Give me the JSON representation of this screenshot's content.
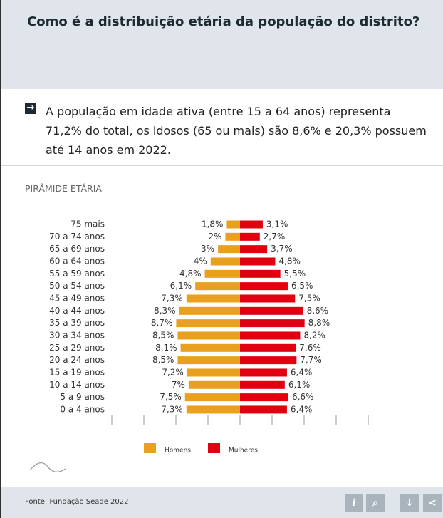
{
  "header": {
    "title": "Como é a distribuição etária da população do distrito?"
  },
  "summary": "A população em idade ativa (entre 15 a 64 anos) representa 71,2% do total, os idosos (65 ou mais) são 8,6% e 20,3% possuem até 14 anos em 2022.",
  "chart_data": {
    "type": "pyramid",
    "title": "PIRÂMIDE ETÁRIA",
    "categories": [
      "75 mais",
      "70 a 74 anos",
      "65 a 69 anos",
      "60 a 64 anos",
      "55 a 59 anos",
      "50 a 54 anos",
      "45 a 49 anos",
      "40 a 44 anos",
      "35 a 39 anos",
      "30 a 34 anos",
      "25 a 29 anos",
      "20 a 24 anos",
      "15 a 19 anos",
      "10 a 14 anos",
      "5 a 9 anos",
      "0 a 4 anos"
    ],
    "series": [
      {
        "name": "Homens",
        "color": "#e8a01e",
        "values": [
          1.8,
          2,
          3,
          4,
          4.8,
          6.1,
          7.3,
          8.3,
          8.7,
          8.5,
          8.1,
          8.5,
          7.2,
          7,
          7.5,
          7.3
        ],
        "value_labels": [
          "1,8%",
          "2%",
          "3%",
          "4%",
          "4,8%",
          "6,1%",
          "7,3%",
          "8,3%",
          "8,7%",
          "8,5%",
          "8,1%",
          "8,5%",
          "7,2%",
          "7%",
          "7,5%",
          "7,3%"
        ]
      },
      {
        "name": "Mulheres",
        "color": "#e00010",
        "values": [
          3.1,
          2.7,
          3.7,
          4.8,
          5.5,
          6.5,
          7.5,
          8.6,
          8.8,
          8.2,
          7.6,
          7.7,
          6.4,
          6.1,
          6.6,
          6.4
        ],
        "value_labels": [
          "3,1%",
          "2,7%",
          "3,7%",
          "4,8%",
          "5,5%",
          "6,5%",
          "7,5%",
          "8,6%",
          "8,8%",
          "8,2%",
          "7,6%",
          "7,7%",
          "6,4%",
          "6,1%",
          "6,6%",
          "6,4%"
        ]
      }
    ]
  },
  "footer": {
    "source": "Fonte: Fundação Seade 2022"
  }
}
